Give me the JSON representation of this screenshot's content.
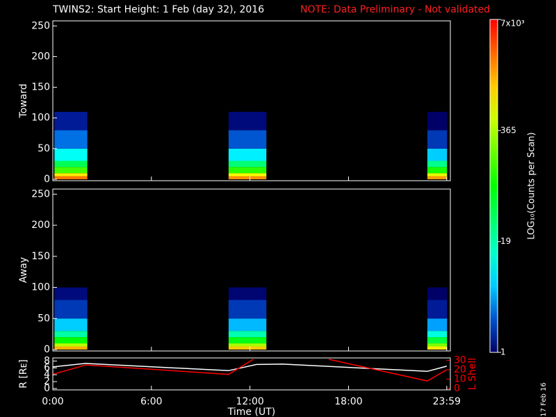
{
  "header": {
    "title": "TWINS2: Start Height:  1 Feb (day  32), 2016",
    "note": "NOTE: Data Preliminary - Not validated",
    "date_stamp": "17 Feb 16"
  },
  "chart_data": [
    {
      "type": "heatmap",
      "ylabel": "Toward",
      "xlim": [
        0,
        24.2
      ],
      "ylim": [
        0,
        256
      ],
      "yticks": [
        0,
        50,
        100,
        150,
        200,
        250
      ],
      "ybins": [
        0,
        5,
        10,
        20,
        30,
        50,
        80,
        110
      ],
      "bursts": [
        {
          "start": 0.1,
          "end": 2.1,
          "counts": [
            2500,
            900,
            150,
            40,
            10,
            3,
            1.5
          ]
        },
        {
          "start": 10.7,
          "end": 13,
          "counts": [
            2000,
            700,
            120,
            30,
            8,
            2.5,
            1.2
          ]
        },
        {
          "start": 22.8,
          "end": 24,
          "counts": [
            1800,
            600,
            100,
            25,
            6,
            2,
            1
          ]
        }
      ]
    },
    {
      "type": "heatmap",
      "ylabel": "Away",
      "xlim": [
        0,
        24.2
      ],
      "ylim": [
        0,
        256
      ],
      "yticks": [
        0,
        50,
        100,
        150,
        200,
        250
      ],
      "ybins": [
        0,
        5,
        10,
        20,
        30,
        50,
        80,
        100
      ],
      "bursts": [
        {
          "start": 0.1,
          "end": 2.1,
          "counts": [
            1500,
            400,
            80,
            20,
            6,
            2,
            1.2
          ]
        },
        {
          "start": 10.7,
          "end": 13,
          "counts": [
            1200,
            350,
            70,
            18,
            5,
            2,
            1.1
          ]
        },
        {
          "start": 22.8,
          "end": 24,
          "counts": [
            900,
            250,
            50,
            12,
            4,
            1.5,
            1
          ]
        }
      ]
    },
    {
      "type": "line",
      "ylabel": "R [Rᴇ]",
      "y2label": "L Shell",
      "xlabel": "Time (UT)",
      "xlim": [
        0,
        24.2
      ],
      "xticks": [
        {
          "value": 0,
          "label": "0:00"
        },
        {
          "value": 6,
          "label": "6:00"
        },
        {
          "value": 12,
          "label": "12:00"
        },
        {
          "value": 18,
          "label": "18:00"
        },
        {
          "value": 23.98,
          "label": "23:59"
        }
      ],
      "ylim": [
        0,
        8.5
      ],
      "yticks": [
        0,
        2,
        4,
        6,
        8
      ],
      "y2lim": [
        0,
        31
      ],
      "y2ticks": [
        0,
        10,
        20,
        30
      ],
      "series": [
        {
          "color": "#ffffff",
          "x": [
            0,
            2,
            10.7,
            12.4,
            14,
            22.8,
            23.98
          ],
          "values": [
            6.3,
            7.3,
            5.2,
            7,
            7.1,
            5,
            6.5
          ]
        },
        {
          "color": "#ff0000",
          "axis": "y2",
          "x": [
            0,
            2,
            10.7,
            12.2,
            14,
            16.8,
            22.8,
            23.98
          ],
          "values": [
            15,
            25,
            15,
            31,
            null,
            31,
            8,
            20
          ]
        }
      ]
    },
    {
      "type": "colorbar",
      "label": "LOG₁₀(Counts per Scan)",
      "zlim": [
        1,
        7000
      ],
      "log": true,
      "zticks": [
        1,
        19,
        365,
        {
          "value": 7000,
          "label": "7x10³"
        }
      ]
    }
  ]
}
